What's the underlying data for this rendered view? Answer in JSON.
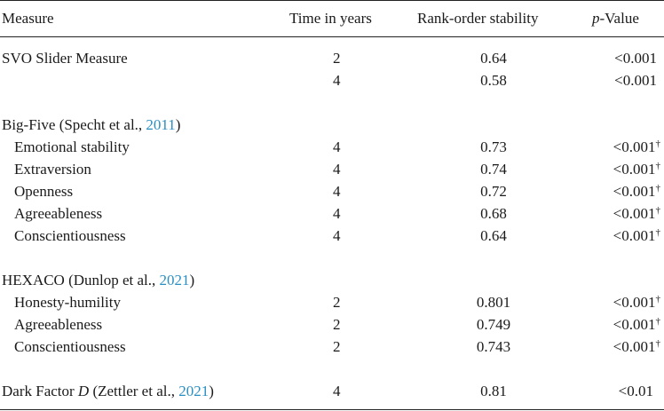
{
  "headers": {
    "measure": "Measure",
    "time": "Time in years",
    "rank": "Rank-order stability",
    "p_prefix": "p",
    "p_suffix": "-Value"
  },
  "rows": [
    {
      "measure": "SVO Slider Measure",
      "time": "2",
      "rank": "0.64",
      "p": "<0.001",
      "dagger": ""
    },
    {
      "measure": "",
      "time": "4",
      "rank": "0.58",
      "p": "<0.001",
      "dagger": ""
    },
    {
      "group_label": "Big-Five (Specht et al., ",
      "group_year": "2011",
      "group_close": ")"
    },
    {
      "measure": "Emotional stability",
      "time": "4",
      "rank": "0.73",
      "p": "<0.001",
      "dagger": "†"
    },
    {
      "measure": "Extraversion",
      "time": "4",
      "rank": "0.74",
      "p": "<0.001",
      "dagger": "†"
    },
    {
      "measure": "Openness",
      "time": "4",
      "rank": "0.72",
      "p": "<0.001",
      "dagger": "†"
    },
    {
      "measure": "Agreeableness",
      "time": "4",
      "rank": "0.68",
      "p": "<0.001",
      "dagger": "†"
    },
    {
      "measure": "Conscientiousness",
      "time": "4",
      "rank": "0.64",
      "p": "<0.001",
      "dagger": "†"
    },
    {
      "group_label": "HEXACO (Dunlop et al., ",
      "group_year": "2021",
      "group_close": ")"
    },
    {
      "measure": "Honesty-humility",
      "time": "2",
      "rank": "0.801",
      "p": "<0.001",
      "dagger": "†"
    },
    {
      "measure": "Agreeableness",
      "time": "2",
      "rank": "0.749",
      "p": "<0.001",
      "dagger": "†"
    },
    {
      "measure": "Conscientiousness",
      "time": "2",
      "rank": "0.743",
      "p": "<0.001",
      "dagger": "†"
    },
    {
      "dark_prefix": "Dark Factor ",
      "dark_var": "D",
      "dark_mid": " (Zettler et al., ",
      "dark_year": "2021",
      "dark_close": ")",
      "time": "4",
      "rank": "0.81",
      "p": "<0.01"
    }
  ]
}
